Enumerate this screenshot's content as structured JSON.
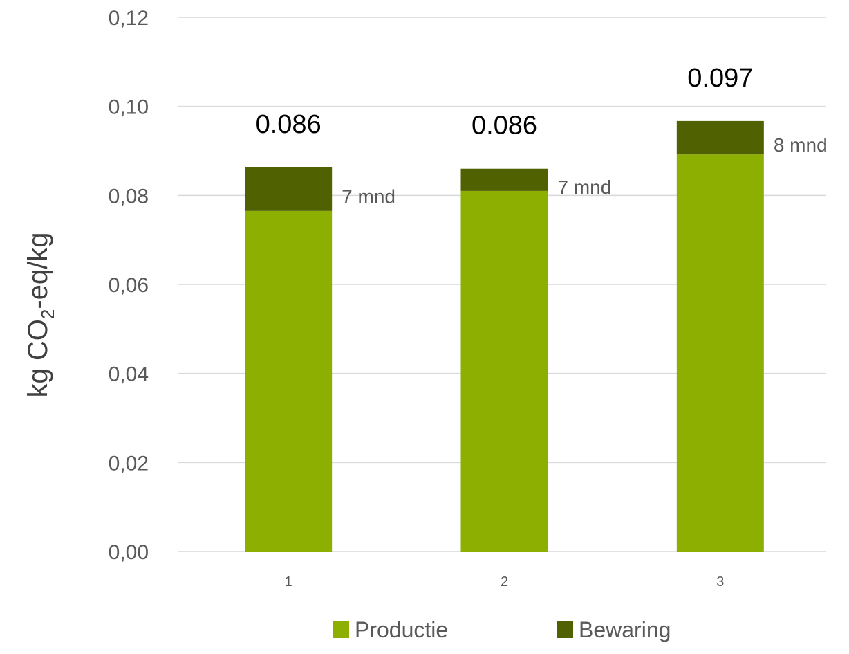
{
  "chart_data": {
    "type": "bar",
    "stacked": true,
    "categories": [
      "1",
      "2",
      "3"
    ],
    "series": [
      {
        "name": "Productie",
        "values": [
          0.0765,
          0.081,
          0.0892
        ],
        "color": "#8DAF01"
      },
      {
        "name": "Bewaring",
        "values": [
          0.0098,
          0.005,
          0.0075
        ],
        "color": "#4F6100"
      }
    ],
    "totals": [
      "0.086",
      "0.086",
      "0.097"
    ],
    "annotations": [
      "7 mnd",
      "7 mnd",
      "8 mnd"
    ],
    "ylabel": {
      "main": "kg CO",
      "sub": "2",
      "rest": "-eq/kg"
    },
    "ylim": [
      0,
      0.12
    ],
    "yticks": [
      "0,00",
      "0,02",
      "0,04",
      "0,06",
      "0,08",
      "0,10",
      "0,12"
    ],
    "grid": true,
    "legend_position": "bottom",
    "gridline_color": "#D9D9D9"
  }
}
